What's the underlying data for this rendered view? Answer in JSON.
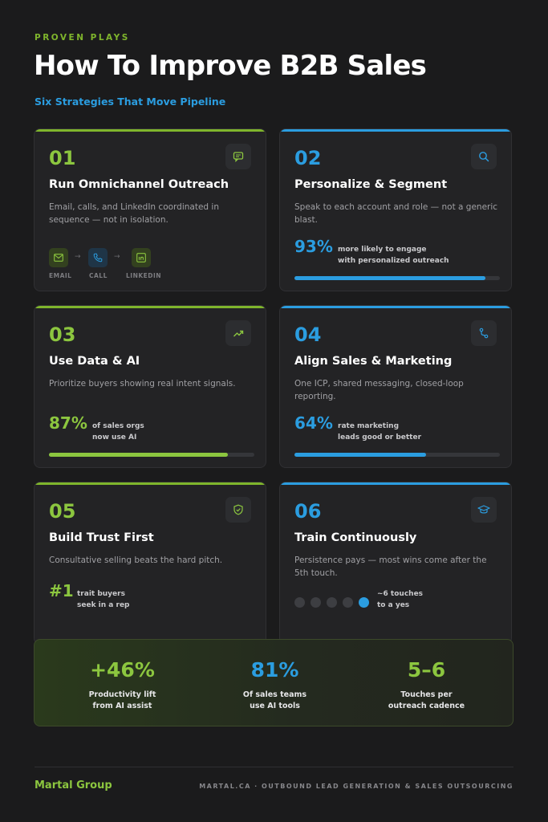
{
  "header": {
    "eyebrow": "PROVEN PLAYS",
    "title": "How To Improve B2B Sales",
    "subtitle": "Six Strategies That Move Pipeline"
  },
  "colors": {
    "green": "#8cc63f",
    "blue": "#2b9de0",
    "background": "#1b1b1c",
    "card": "#232325"
  },
  "cards": [
    {
      "number": "01",
      "accent": "green",
      "icon": "chat-message-icon",
      "title": "Run Omnichannel Outreach",
      "description": "Email, calls, and LinkedIn coordinated in sequence — not in isolation.",
      "channels": [
        {
          "label": "EMAIL",
          "icon": "mail-icon"
        },
        {
          "label": "CALL",
          "icon": "phone-icon"
        },
        {
          "label": "LINKEDIN",
          "icon": "linkedin-icon"
        }
      ],
      "channel_separator": "→"
    },
    {
      "number": "02",
      "accent": "blue",
      "icon": "search-icon",
      "title": "Personalize & Segment",
      "description": "Speak to each account and role — not a generic blast.",
      "stat": "93%",
      "stat_label_1": "more likely to engage",
      "stat_label_2": "with personalized outreach",
      "progress": 0.93
    },
    {
      "number": "03",
      "accent": "green",
      "icon": "trending-up-icon",
      "title": "Use Data & AI",
      "description": "Prioritize buyers showing real intent signals.",
      "stat": "87%",
      "stat_label_1": "of sales orgs",
      "stat_label_2": "now use AI",
      "progress": 0.87
    },
    {
      "number": "04",
      "accent": "blue",
      "icon": "route-icon",
      "title": "Align Sales & Marketing",
      "description": "One ICP, shared messaging, closed-loop reporting.",
      "stat": "64%",
      "stat_label_1": "rate marketing",
      "stat_label_2": "leads good or better",
      "progress": 0.64
    },
    {
      "number": "05",
      "accent": "green",
      "icon": "shield-check-icon",
      "title": "Build Trust First",
      "description": "Consultative selling beats the hard pitch.",
      "stat": "#1",
      "stat_label_1": "trait buyers",
      "stat_label_2": "seek in a rep"
    },
    {
      "number": "06",
      "accent": "blue",
      "icon": "graduation-cap-icon",
      "title": "Train Continuously",
      "description": "Persistence pays — most wins come after the 5th touch.",
      "touches_total": 5,
      "touches_active": 5,
      "stat_label_1": "~6 touches",
      "stat_label_2": "to a yes"
    }
  ],
  "summary": [
    {
      "value": "+46%",
      "label_1": "Productivity lift",
      "label_2": "from AI assist",
      "accent": "green"
    },
    {
      "value": "81%",
      "label_1": "Of sales teams",
      "label_2": "use AI tools",
      "accent": "blue"
    },
    {
      "value": "5–6",
      "label_1": "Touches per",
      "label_2": "outreach cadence",
      "accent": "green"
    }
  ],
  "footer": {
    "brand": "Martal Group",
    "note": "MARTAL.CA · OUTBOUND LEAD GENERATION & SALES OUTSOURCING"
  }
}
